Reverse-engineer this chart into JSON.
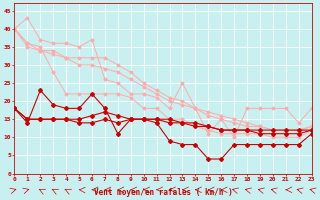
{
  "xlabel": "Vent moyen/en rafales ( km/h )",
  "background_color": "#c8f0f0",
  "grid_color": "#ffffff",
  "xlim": [
    0,
    23
  ],
  "ylim": [
    0,
    47
  ],
  "yticks": [
    0,
    5,
    10,
    15,
    20,
    25,
    30,
    35,
    40,
    45
  ],
  "xticks": [
    0,
    1,
    2,
    3,
    4,
    5,
    6,
    7,
    8,
    9,
    10,
    11,
    12,
    13,
    14,
    15,
    16,
    17,
    18,
    19,
    20,
    21,
    22,
    23
  ],
  "series_light": [
    [
      40,
      43,
      37,
      36,
      36,
      35,
      37,
      26,
      25,
      22,
      22,
      21,
      18,
      25,
      18,
      11,
      15,
      10,
      18,
      18,
      18,
      18,
      14,
      18
    ],
    [
      40,
      36,
      35,
      28,
      22,
      22,
      22,
      22,
      22,
      21,
      18,
      18,
      15,
      15,
      13,
      12,
      11,
      11,
      11,
      11,
      10,
      10,
      10,
      12
    ],
    [
      40,
      35,
      34,
      34,
      32,
      32,
      32,
      32,
      30,
      28,
      25,
      23,
      21,
      20,
      18,
      17,
      16,
      15,
      14,
      13,
      12,
      12,
      12,
      13
    ],
    [
      40,
      36,
      34,
      33,
      32,
      30,
      30,
      29,
      28,
      26,
      24,
      22,
      20,
      19,
      18,
      16,
      15,
      14,
      13,
      13,
      12,
      12,
      12,
      13
    ]
  ],
  "series_dark": [
    [
      18,
      14,
      23,
      19,
      18,
      18,
      22,
      18,
      11,
      15,
      15,
      14,
      9,
      8,
      8,
      4,
      4,
      8,
      8,
      8,
      8,
      8,
      8,
      11
    ],
    [
      18,
      15,
      15,
      15,
      15,
      14,
      14,
      15,
      14,
      15,
      15,
      15,
      15,
      14,
      13,
      13,
      12,
      12,
      12,
      12,
      12,
      12,
      12,
      12
    ],
    [
      18,
      15,
      15,
      15,
      15,
      15,
      16,
      17,
      16,
      15,
      15,
      15,
      14,
      14,
      14,
      13,
      12,
      12,
      12,
      11,
      11,
      11,
      11,
      12
    ]
  ],
  "light_color": "#ffaaaa",
  "dark_color": "#cc0000",
  "marker_size": 2.5
}
